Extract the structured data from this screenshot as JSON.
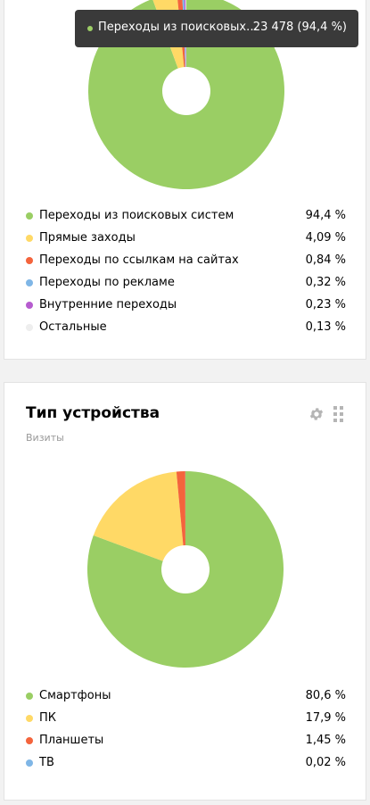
{
  "colors": {
    "green": "#9ace64",
    "yellow": "#ffd966",
    "red": "#f4643c",
    "blue": "#7fb6e6",
    "purple": "#b65ccf",
    "gray": "#eeeeee"
  },
  "traffic": {
    "tooltip": {
      "label": "Переходы из поисковых систем",
      "value": "23 478 (94,4 %)"
    }
  },
  "devices": {
    "title": "Тип устройства",
    "subtitle": "Визиты",
    "tools": [
      "gear-icon",
      "drag-handle-icon"
    ]
  },
  "chart_data": [
    {
      "type": "pie",
      "donut": true,
      "categories": [
        "Переходы из поисковых систем",
        "Прямые заходы",
        "Переходы по ссылкам на сайтах",
        "Переходы по рекламе",
        "Внутренние переходы",
        "Остальные"
      ],
      "values": [
        94.4,
        4.09,
        0.84,
        0.32,
        0.23,
        0.13
      ],
      "value_labels": [
        "94,4 %",
        "4,09 %",
        "0,84 %",
        "0,32 %",
        "0,23 %",
        "0,13 %"
      ],
      "colors": [
        "#9ace64",
        "#ffd966",
        "#f4643c",
        "#7fb6e6",
        "#b65ccf",
        "#eeeeee"
      ],
      "legend": "bottom"
    },
    {
      "type": "pie",
      "donut": true,
      "title": "Тип устройства",
      "subtitle": "Визиты",
      "categories": [
        "Смартфоны",
        "ПК",
        "Планшеты",
        "ТВ"
      ],
      "values": [
        80.6,
        17.9,
        1.45,
        0.02
      ],
      "value_labels": [
        "80,6 %",
        "17,9 %",
        "1,45 %",
        "0,02 %"
      ],
      "colors": [
        "#9ace64",
        "#ffd966",
        "#f4643c",
        "#7fb6e6"
      ],
      "legend": "bottom"
    }
  ]
}
